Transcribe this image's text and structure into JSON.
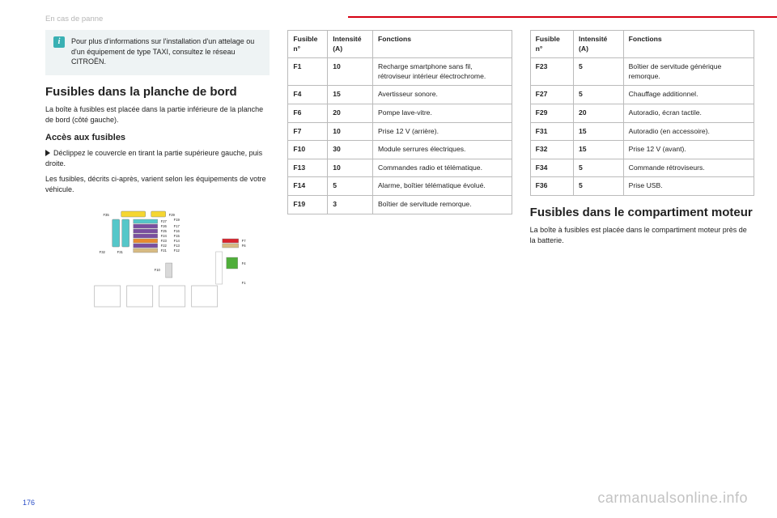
{
  "breadcrumb": "En cas de panne",
  "info_text": "Pour plus d'informations sur l'installation d'un attelage ou d'un équipement de type TAXI, consultez le réseau CITROËN.",
  "section1_title": "Fusibles dans la planche de bord",
  "section1_body": "La boîte à fusibles est placée dans la partie inférieure de la planche de bord (côté gauche).",
  "sub1_title": "Accès aux fusibles",
  "sub1_line1": "Déclippez le couvercle en tirant la partie supérieure gauche, puis droite.",
  "sub1_line2": "Les fusibles, décrits ci-après, varient selon les équipements de votre véhicule.",
  "section2_title": "Fusibles dans le compartiment moteur",
  "section2_body": "La boîte à fusibles est placée dans le compartiment moteur près de la batterie.",
  "headers": {
    "num": "Fusible n°",
    "amp": "Intensité (A)",
    "func": "Fonctions"
  },
  "table_left": [
    {
      "n": "F1",
      "a": "10",
      "f": "Recharge smartphone sans fil, rétroviseur intérieur électrochrome."
    },
    {
      "n": "F4",
      "a": "15",
      "f": "Avertisseur sonore."
    },
    {
      "n": "F6",
      "a": "20",
      "f": "Pompe lave-vitre."
    },
    {
      "n": "F7",
      "a": "10",
      "f": "Prise 12 V (arrière)."
    },
    {
      "n": "F10",
      "a": "30",
      "f": "Module serrures électriques."
    },
    {
      "n": "F13",
      "a": "10",
      "f": "Commandes radio et télématique."
    },
    {
      "n": "F14",
      "a": "5",
      "f": "Alarme, boîtier télématique évolué."
    },
    {
      "n": "F19",
      "a": "3",
      "f": "Boîtier de servitude remorque."
    }
  ],
  "table_right": [
    {
      "n": "F23",
      "a": "5",
      "f": "Boîtier de servitude générique remorque."
    },
    {
      "n": "F27",
      "a": "5",
      "f": "Chauffage additionnel."
    },
    {
      "n": "F29",
      "a": "20",
      "f": "Autoradio, écran tactile."
    },
    {
      "n": "F31",
      "a": "15",
      "f": "Autoradio (en accessoire)."
    },
    {
      "n": "F32",
      "a": "15",
      "f": "Prise 12 V (avant)."
    },
    {
      "n": "F34",
      "a": "5",
      "f": "Commande rétroviseurs."
    },
    {
      "n": "F36",
      "a": "5",
      "f": "Prise USB."
    }
  ],
  "page_number": "176",
  "watermark": "carmanualsonline.info",
  "diagram": {
    "bg": "#ffffff",
    "labels": {
      "size": 4.2,
      "color": "#222"
    },
    "colors": {
      "yellow": "#f5d631",
      "cyan": "#55c7c9",
      "violet": "#7a4ea0",
      "orange": "#e88b2e",
      "red": "#d9232d",
      "green": "#4fae3a",
      "tan": "#d7ba82",
      "grey": "#d9d9d9",
      "outline": "#888"
    }
  }
}
